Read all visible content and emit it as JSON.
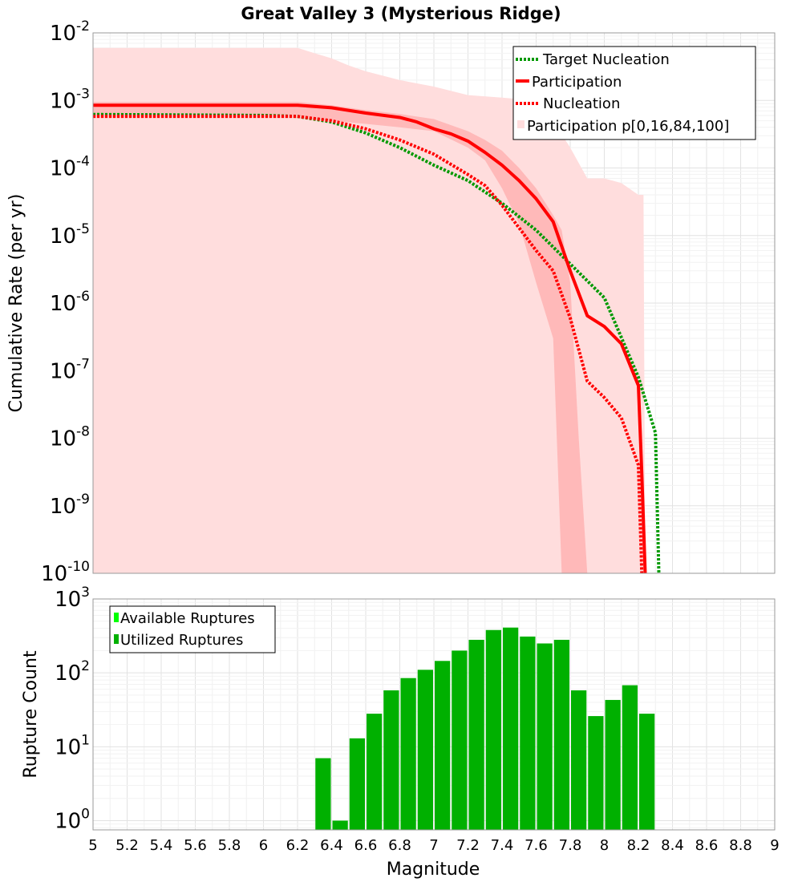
{
  "chart_data": [
    {
      "type": "line",
      "title": "Great Valley 3 (Mysterious Ridge)",
      "xlabel": "",
      "ylabel": "Cumulative Rate (per yr)",
      "y_scale": "log",
      "xlim": [
        5,
        9
      ],
      "ylim": [
        1e-10,
        0.01
      ],
      "y_tick_mantissa": "10",
      "y_ticks": [
        {
          "value": 0.01,
          "exp": "-2"
        },
        {
          "value": 0.001,
          "exp": "-3"
        },
        {
          "value": 0.0001,
          "exp": "-4"
        },
        {
          "value": 1e-05,
          "exp": "-5"
        },
        {
          "value": 1e-06,
          "exp": "-6"
        },
        {
          "value": 1e-07,
          "exp": "-7"
        },
        {
          "value": 1e-08,
          "exp": "-8"
        },
        {
          "value": 1e-09,
          "exp": "-9"
        },
        {
          "value": 1e-10,
          "exp": "-10"
        }
      ],
      "grid": true,
      "legend": "top-right",
      "legend_entries": [
        "Target Nucleation",
        "Participation",
        "Nucleation",
        "Participation p[0,16,84,100]"
      ],
      "series": [
        {
          "name": "Target Nucleation",
          "color": "#009900",
          "style": "dotted",
          "x": [
            5,
            5.5,
            6,
            6.2,
            6.4,
            6.6,
            6.8,
            7,
            7.2,
            7.4,
            7.6,
            7.8,
            8,
            8.2,
            8.3,
            8.32
          ],
          "y": [
            0.00062,
            0.00061,
            0.0006,
            0.00058,
            0.00048,
            0.00033,
            0.0002,
            0.00011,
            6.5e-05,
            3e-05,
            1.2e-05,
            3.8e-06,
            1.2e-06,
            8e-08,
            1.2e-08,
            1e-10
          ]
        },
        {
          "name": "Participation",
          "color": "#ff0000",
          "style": "solid",
          "x": [
            5,
            5.5,
            6,
            6.2,
            6.4,
            6.6,
            6.8,
            6.9,
            7,
            7.1,
            7.2,
            7.3,
            7.4,
            7.5,
            7.6,
            7.7,
            7.8,
            7.9,
            8,
            8.1,
            8.2,
            8.22,
            8.24
          ],
          "y": [
            0.00085,
            0.00085,
            0.00085,
            0.00085,
            0.00078,
            0.00065,
            0.00056,
            0.00048,
            0.00038,
            0.00032,
            0.00025,
            0.00017,
            0.00011,
            6.5e-05,
            3.5e-05,
            1.6e-05,
            3e-06,
            6.5e-07,
            4.5e-07,
            2.5e-07,
            6e-08,
            3e-09,
            1e-10
          ]
        },
        {
          "name": "Nucleation",
          "color": "#ff0000",
          "style": "dotted",
          "x": [
            5,
            5.5,
            6,
            6.2,
            6.4,
            6.6,
            6.8,
            7,
            7.2,
            7.3,
            7.4,
            7.5,
            7.6,
            7.7,
            7.8,
            7.9,
            8,
            8.1,
            8.2,
            8.22
          ],
          "y": [
            0.00058,
            0.00058,
            0.00058,
            0.00058,
            0.0005,
            0.00038,
            0.00026,
            0.00016,
            8e-05,
            5.5e-05,
            2.8e-05,
            1.3e-05,
            6e-06,
            3e-06,
            6e-07,
            7e-08,
            4e-08,
            2e-08,
            4e-09,
            1e-10
          ]
        }
      ],
      "bands": [
        {
          "name": "Participation p[0,100]",
          "color": "#ffdddd",
          "x": [
            5,
            6.2,
            6.3,
            6.4,
            6.5,
            6.6,
            6.8,
            7,
            7.2,
            7.4,
            7.6,
            7.7,
            7.8,
            7.9,
            8,
            8.1,
            8.2,
            8.23,
            8.24
          ],
          "upper": [
            0.006,
            0.006,
            0.005,
            0.0042,
            0.0033,
            0.0027,
            0.002,
            0.0016,
            0.0012,
            0.0011,
            0.001,
            0.0005,
            0.0002,
            7e-05,
            7e-05,
            6e-05,
            4e-05,
            4e-05,
            1e-10
          ],
          "lower": [
            1e-10,
            1e-10,
            1e-10,
            1e-10,
            1e-10,
            1e-10,
            1e-10,
            1e-10,
            1e-10,
            1e-10,
            1e-10,
            1e-10,
            1e-10,
            1e-10,
            1e-10,
            1e-10,
            1e-10,
            1e-10,
            1e-10
          ]
        },
        {
          "name": "Participation p[16,84]",
          "color": "#ffb9b9",
          "x": [
            5,
            6.2,
            6.4,
            6.6,
            6.8,
            7,
            7.2,
            7.3,
            7.4,
            7.5,
            7.6,
            7.7,
            7.75,
            7.8,
            7.85,
            7.9
          ],
          "upper": [
            0.00095,
            0.00095,
            0.00085,
            0.00072,
            0.00063,
            0.00053,
            0.00035,
            0.00026,
            0.00018,
            0.0001,
            5e-05,
            2e-05,
            1.2e-05,
            2e-06,
            1e-08,
            1e-10
          ],
          "lower": [
            0.00055,
            0.00055,
            0.0005,
            0.00045,
            0.0004,
            0.00035,
            0.0002,
            0.00013,
            5e-05,
            1.5e-05,
            2e-06,
            3e-07,
            1e-10,
            1e-10,
            1e-10,
            1e-10
          ]
        }
      ]
    },
    {
      "type": "bar",
      "title": "",
      "xlabel": "Magnitude",
      "ylabel": "Rupture Count",
      "y_scale": "log",
      "xlim": [
        5,
        9
      ],
      "ylim": [
        0.75,
        1000
      ],
      "y_tick_mantissa": "10",
      "y_ticks": [
        {
          "value": 1,
          "exp": "0"
        },
        {
          "value": 10,
          "exp": "1"
        },
        {
          "value": 100,
          "exp": "2"
        },
        {
          "value": 1000,
          "exp": "3"
        }
      ],
      "x_ticks": [
        "5",
        "5.2",
        "5.4",
        "5.6",
        "5.8",
        "6",
        "6.2",
        "6.4",
        "6.6",
        "6.8",
        "7",
        "7.2",
        "7.4",
        "7.6",
        "7.8",
        "8",
        "8.2",
        "8.4",
        "8.6",
        "8.8",
        "9"
      ],
      "grid": true,
      "legend": "top-left",
      "legend_entries": [
        {
          "name": "Available Ruptures",
          "color": "#00ff00"
        },
        {
          "name": "Utilized Ruptures",
          "color": "#00b000"
        }
      ],
      "bin_width": 0.1,
      "bar_color": "#00b000",
      "bins": [
        6.35,
        6.45,
        6.55,
        6.65,
        6.75,
        6.85,
        6.95,
        7.05,
        7.15,
        7.25,
        7.35,
        7.45,
        7.55,
        7.65,
        7.75,
        7.85,
        7.95,
        8.05,
        8.15,
        8.25
      ],
      "values": [
        7,
        1,
        13,
        28,
        58,
        85,
        110,
        145,
        200,
        280,
        380,
        410,
        310,
        250,
        280,
        58,
        26,
        43,
        68,
        28
      ]
    }
  ]
}
